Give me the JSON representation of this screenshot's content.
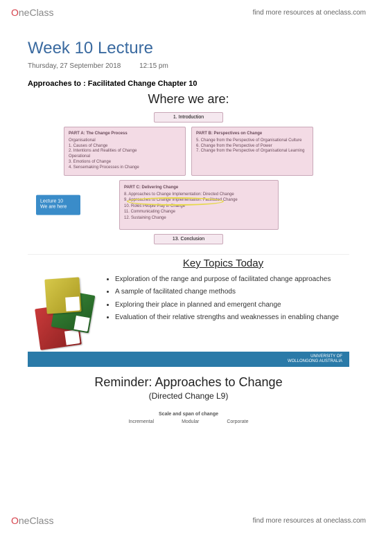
{
  "brand": {
    "oLetter": "O",
    "rest": "neClass"
  },
  "header": {
    "find": "find more resources at oneclass.com"
  },
  "title": "Week 10 Lecture",
  "date": "Thursday, 27 September 2018",
  "time": "12:15 pm",
  "approaches": "Approaches to : Facilitated Change Chapter 10",
  "whereTitle": "Where we are:",
  "intro": "1. Introduction",
  "partA": {
    "heading": "PART A: The Change Process",
    "items": "Organisational\n1. Causes of Change\n2. Intentions and Realities of Change\nOperational\n3. Emotions of Change\n4. Sensemaking Processes in Change"
  },
  "partB": {
    "heading": "PART B: Perspectives on Change",
    "items": "5. Change from the Perspective of Organisational Culture\n6. Change from the Perspective of Power\n7. Change from the Perspective of Organisational Learning"
  },
  "partC": {
    "heading": "PART C: Delivering Change",
    "items": "8. Approaches to Change Implementation: Directed Change\n9. Approaches to Change Implementation: Facilitated Change\n10. Roles People Play in Change\n11. Communicating Change\n12. Sustaining Change"
  },
  "lectureTag": "Lecture 10\nWe are here",
  "conclusion": "13. Conclusion",
  "keyTopics": {
    "title": "Key Topics Today",
    "items": [
      "Exploration of the range and purpose of facilitated change approaches",
      "A sample of facilitated change methods",
      "Exploring their place in planned and emergent change",
      "Evaluation of their relative strengths and weaknesses in enabling change"
    ]
  },
  "uow": "UNIVERSITY OF\nWOLLONGONG AUSTRALIA",
  "reminder": {
    "title": "Reminder: Approaches to Change",
    "subtitle": "(Directed Change L9)",
    "scaleLabel": "Scale and span of change",
    "scaleItems": [
      "Incremental",
      "Modular",
      "Corporate"
    ]
  },
  "colors": {
    "titleBlue": "#3a6aa0",
    "brandRed": "#d6404a",
    "pinkBg": "#f3dbe5",
    "pinkBorder": "#c9a8b8",
    "tagBlue": "#3a8cc9",
    "barBlue": "#2a7aa8",
    "highlight": "#e6d84a"
  }
}
